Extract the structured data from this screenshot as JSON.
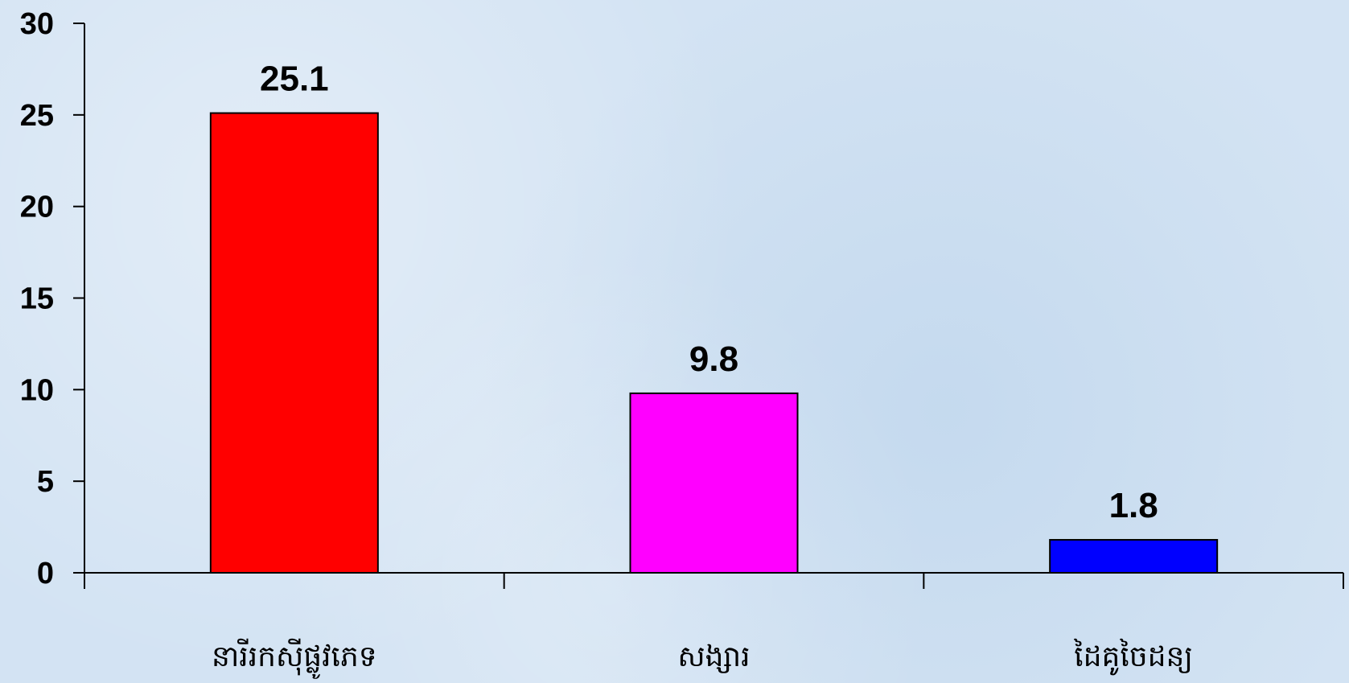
{
  "chart_data": {
    "type": "bar",
    "categories": [
      "នារីរកស៊ីផ្លូវភេទ",
      "សង្សារ",
      "ដៃគូចៃដន្យ"
    ],
    "values": [
      25.1,
      9.8,
      1.8
    ],
    "data_labels": [
      "25.1",
      "9.8",
      "1.8"
    ],
    "bar_colors": [
      "#ff0000",
      "#ff00ff",
      "#0000ff"
    ],
    "yticks": [
      0,
      5,
      10,
      15,
      20,
      25,
      30
    ],
    "ytick_labels": [
      "0",
      "5",
      "10",
      "15",
      "20",
      "25",
      "30"
    ],
    "ylim": [
      0,
      30
    ],
    "grid": false,
    "legend": "none",
    "background_color": "#d3e3f3"
  }
}
